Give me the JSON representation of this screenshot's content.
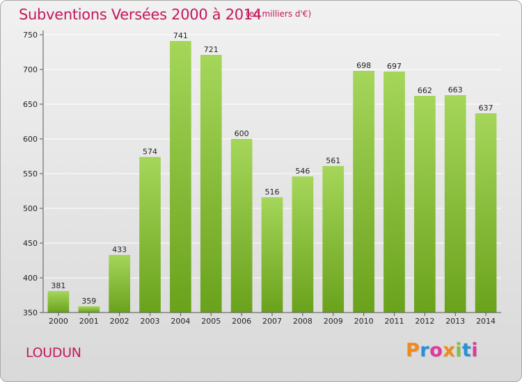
{
  "title": "Subventions Versées 2000 à 2014",
  "subtitle": "(en milliers d'€)",
  "place": "LOUDUN",
  "brand": "Proxiti",
  "colors": {
    "title": "#c2185b",
    "bar_light": "#a5d65a",
    "bar_dark": "#6aa21c",
    "grid": "#ffffff"
  },
  "chart_data": {
    "type": "bar",
    "categories": [
      "2000",
      "2001",
      "2002",
      "2003",
      "2004",
      "2005",
      "2006",
      "2007",
      "2008",
      "2009",
      "2010",
      "2011",
      "2012",
      "2013",
      "2014"
    ],
    "values": [
      381,
      359,
      433,
      574,
      741,
      721,
      600,
      516,
      546,
      561,
      698,
      697,
      662,
      663,
      637
    ],
    "ylim": [
      350,
      750
    ],
    "yticks": [
      350,
      400,
      450,
      500,
      550,
      600,
      650,
      700,
      750
    ],
    "grid": true,
    "data_labels": true
  }
}
